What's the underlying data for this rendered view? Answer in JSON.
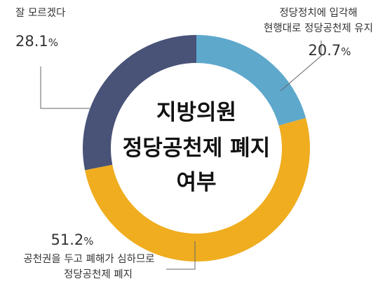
{
  "chart_data": {
    "type": "pie",
    "title": "지방의원 정당공천제 폐지 여부",
    "title_lines": [
      "지방의원",
      "정당공천제 폐지",
      "여부"
    ],
    "unit": "%",
    "categories": [
      [
        "정당정치에 입각해",
        "현행대로 정당공천제 유지"
      ],
      [
        "공천권을 두고 폐해가 심하므로",
        "정당공천제 폐지"
      ],
      [
        "잘 모르겠다"
      ]
    ],
    "values": [
      20.7,
      51.2,
      28.1
    ],
    "value_labels": [
      "20.7",
      "51.2",
      "28.1"
    ],
    "colors": [
      "#5ea8cc",
      "#efad1f",
      "#495277"
    ],
    "donut": true,
    "legend": "none"
  }
}
